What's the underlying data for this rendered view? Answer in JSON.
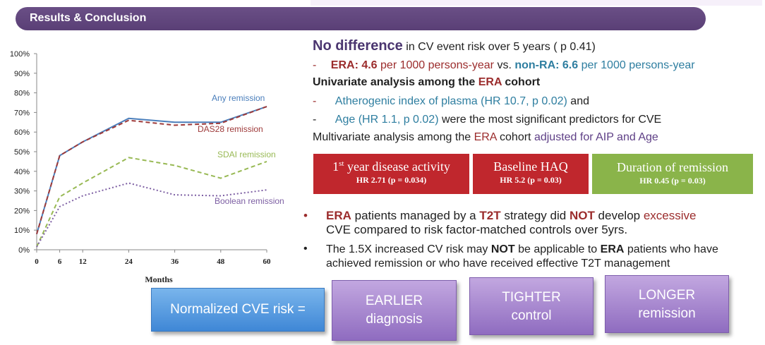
{
  "header": {
    "title": "Results & Conclusion"
  },
  "chart_data": {
    "type": "line",
    "x": [
      0,
      6,
      12,
      24,
      36,
      48,
      60
    ],
    "xlabel": "Months",
    "ylabel": "",
    "ylim": [
      0,
      100
    ],
    "yticks": [
      "0%",
      "10%",
      "20%",
      "30%",
      "40%",
      "50%",
      "60%",
      "70%",
      "80%",
      "90%",
      "100%"
    ],
    "grid": false,
    "series": [
      {
        "name": "Any remission",
        "color": "#4a7ebb",
        "dash": "solid",
        "values": [
          8,
          48,
          55,
          67,
          65,
          65,
          73
        ]
      },
      {
        "name": "DAS28 remission",
        "color": "#9e3a3a",
        "dash": "dashed",
        "values": [
          8,
          48,
          55,
          66,
          63.5,
          64.5,
          73
        ]
      },
      {
        "name": "SDAI remission",
        "color": "#98b954",
        "dash": "dashed",
        "values": [
          1.5,
          27,
          34,
          47,
          43,
          36.5,
          45
        ]
      },
      {
        "name": "Boolean remission",
        "color": "#7d5fa3",
        "dash": "dotted",
        "values": [
          1.5,
          22,
          27.5,
          34,
          28,
          27.5,
          30.5
        ]
      }
    ]
  },
  "text": {
    "l1": {
      "a": "No difference",
      "b": " in CV event risk over 5 years ( p 0.41)"
    },
    "l2": {
      "dash": "-",
      "a": "ERA: 4.6",
      "b": " per 1000 persons-year",
      "c": " vs. ",
      "d": "non-RA: 6.6",
      "e": " per 1000 persons-year"
    },
    "l3": {
      "a": "Univariate analysis among the ",
      "b": "ERA",
      "c": " cohort"
    },
    "l4": {
      "dash": "-",
      "a": "Atherogenic index of plasma (HR 10.7, p 0.02)",
      "b": " and"
    },
    "l5": {
      "dash": "-",
      "a": "Age (HR 1.1, p 0.02)",
      "b": " were the most significant predictors for CVE"
    },
    "l6": {
      "a": "Multivariate analysis among the ",
      "b": "ERA",
      "c": " cohort ",
      "d": "adjusted for AIP and Age"
    }
  },
  "boxes": [
    {
      "title_pre": "1",
      "title_sup": "st",
      "title_post": " year disease activity",
      "sub": "HR 2.71 (p = 0.034)",
      "color": "#c0272d"
    },
    {
      "title_pre": "Baseline HAQ",
      "title_sup": "",
      "title_post": "",
      "sub": "HR 5.2 (p = 0.03)",
      "color": "#c0272d"
    },
    {
      "title_pre": "Duration of remission",
      "title_sup": "",
      "title_post": "",
      "sub": "HR 0.45 (p = 0.03)",
      "color": "#8ab44a"
    }
  ],
  "bullets": {
    "b1": {
      "dot": "•",
      "a": "ERA",
      "b": " patients managed by a ",
      "c": "T2T",
      "d": " strategy did ",
      "e": "NOT",
      "f": " develop ",
      "g": "excessive",
      "line2": "CVE compared to risk factor-matched controls over 5yrs."
    },
    "b2": {
      "dot": "•",
      "a": "The 1.5X increased CV risk may ",
      "b": "NOT",
      "c": " be applicable to ",
      "d": "ERA",
      "e": " patients who have",
      "line2": "achieved remission or who have received effective T2T management"
    }
  },
  "equation": {
    "lhs": "Normalized CVE risk =",
    "terms": [
      {
        "line1": "EARLIER",
        "line2": "diagnosis"
      },
      {
        "line1": "TIGHTER",
        "line2": "control"
      },
      {
        "line1": "LONGER",
        "line2": "remission"
      }
    ]
  }
}
